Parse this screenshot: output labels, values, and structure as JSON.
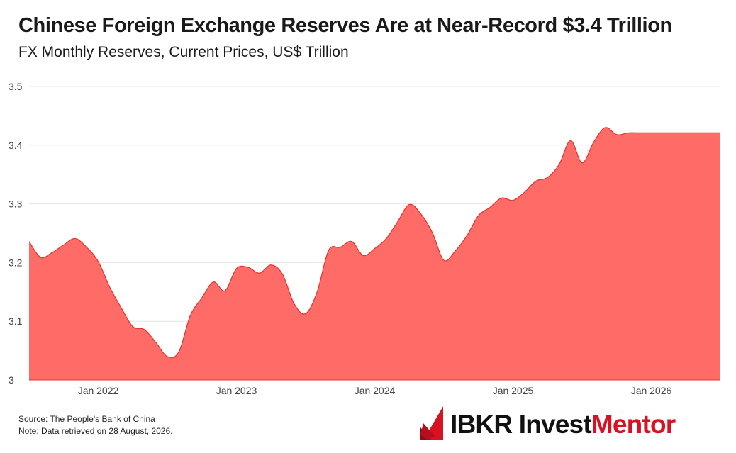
{
  "header": {
    "title": "Chinese Foreign Exchange Reserves Are at Near-Record $3.4 Trillion",
    "subtitle": "FX Monthly Reserves, Current Prices, US$ Trillion"
  },
  "footer": {
    "source": "Source: The People's Bank of China",
    "note": "Note: Data retrieved on 28 August, 2026."
  },
  "brand": {
    "name_part1": "IBKR Invest",
    "name_part2": "Mentor",
    "colors": {
      "dark": "#111111",
      "red": "#d81222"
    }
  },
  "chart_data": {
    "type": "area",
    "title": "Chinese Foreign Exchange Reserves Are at Near-Record $3.4 Trillion",
    "subtitle": "FX Monthly Reserves, Current Prices, US$ Trillion",
    "xlabel": "",
    "ylabel": "",
    "ylim": [
      3.0,
      3.5
    ],
    "yticks": [
      3,
      3.1,
      3.2,
      3.3,
      3.4,
      3.5
    ],
    "ytick_labels": [
      "3",
      "3.1",
      "3.2",
      "3.3",
      "3.4",
      "3.5"
    ],
    "xticks": [
      "Jan 2022",
      "Jan 2023",
      "Jan 2024",
      "Jan 2025",
      "Jan 2026"
    ],
    "x_range": [
      "2021-07",
      "2026-07"
    ],
    "grid": "horizontal",
    "legend": "none",
    "fill_color": "#ff6b66",
    "line_color": "#e8302c",
    "series": [
      {
        "x": [
          "2021-07",
          "2021-08",
          "2021-09",
          "2021-10",
          "2021-11",
          "2021-12",
          "2022-01",
          "2022-02",
          "2022-03",
          "2022-04",
          "2022-05",
          "2022-06",
          "2022-07",
          "2022-08",
          "2022-09",
          "2022-10",
          "2022-11",
          "2022-12",
          "2023-01",
          "2023-02",
          "2023-03",
          "2023-04",
          "2023-05",
          "2023-06",
          "2023-07",
          "2023-08",
          "2023-09",
          "2023-10",
          "2023-11",
          "2023-12",
          "2024-01",
          "2024-02",
          "2024-03",
          "2024-04",
          "2024-05",
          "2024-06",
          "2024-07",
          "2024-08",
          "2024-09",
          "2024-10",
          "2024-11",
          "2024-12",
          "2025-01",
          "2025-02",
          "2025-03",
          "2025-04",
          "2025-05",
          "2025-06",
          "2025-07",
          "2025-08",
          "2025-09",
          "2025-10",
          "2025-11",
          "2025-12",
          "2026-01",
          "2026-02",
          "2026-03",
          "2026-04",
          "2026-05",
          "2026-06",
          "2026-07"
        ],
        "values": [
          3.236,
          3.209,
          3.217,
          3.23,
          3.241,
          3.226,
          3.202,
          3.158,
          3.123,
          3.091,
          3.086,
          3.064,
          3.04,
          3.048,
          3.11,
          3.14,
          3.167,
          3.152,
          3.19,
          3.192,
          3.182,
          3.196,
          3.18,
          3.13,
          3.113,
          3.15,
          3.221,
          3.226,
          3.236,
          3.212,
          3.224,
          3.241,
          3.27,
          3.299,
          3.283,
          3.251,
          3.204,
          3.22,
          3.246,
          3.28,
          3.294,
          3.31,
          3.306,
          3.32,
          3.339,
          3.345,
          3.367,
          3.408,
          3.37,
          3.405,
          3.43,
          3.418,
          3.421,
          3.421,
          3.421,
          3.421,
          3.421,
          3.421,
          3.421,
          3.421,
          3.421
        ]
      }
    ]
  }
}
